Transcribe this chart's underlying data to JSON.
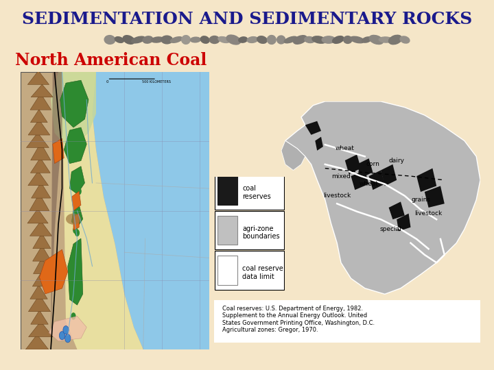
{
  "title": "SEDIMENTATION AND SEDIMENTARY ROCKS",
  "subtitle": "North American Coal",
  "title_color": "#1a1a8c",
  "subtitle_color": "#cc0000",
  "background_color": "#f5e6c8",
  "title_fontsize": 18,
  "subtitle_fontsize": 17,
  "fig_width": 7.2,
  "fig_height": 5.4,
  "citation_text": "Coal reserves: U.S. Department of Energy, 1982.\nSupplement to the Annual Energy Outlook. United\nStates Government Printing Office, Washington, D.C.\nAgricultural zones: Gregor, 1970."
}
